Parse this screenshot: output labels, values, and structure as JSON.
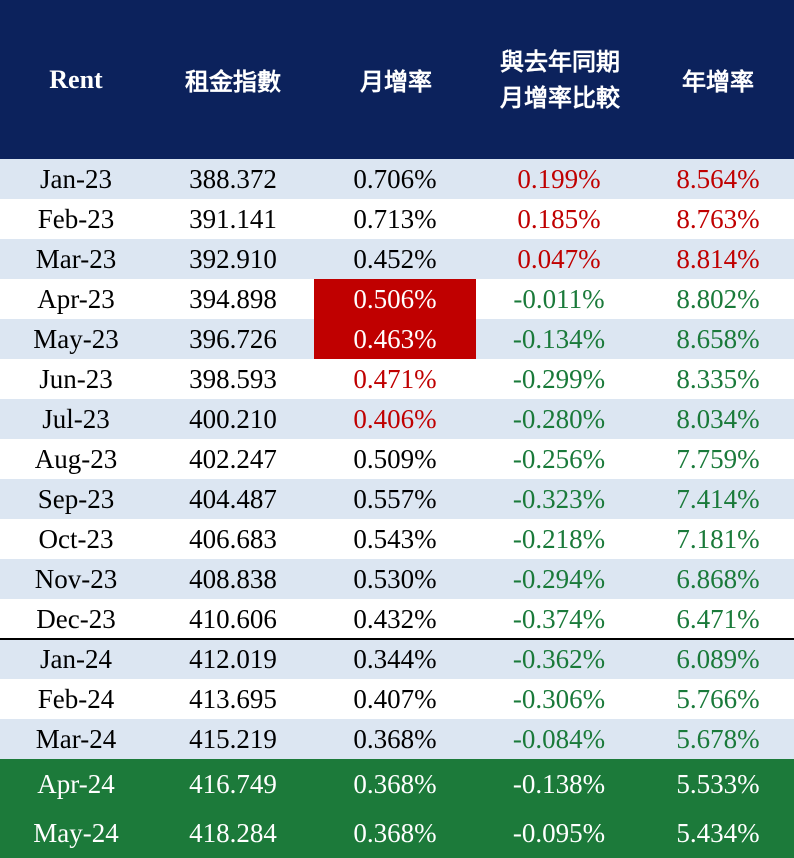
{
  "header": {
    "col0": "Rent",
    "col1": "租金指數",
    "col2": "月增率",
    "col3_line1": "與去年同期",
    "col3_line2": "月增率比較",
    "col4": "年增率"
  },
  "colors": {
    "header_bg": "#0c225c",
    "alt_row_bg": "#dce6f2",
    "highlight_green_bg": "#1c7a3a",
    "highlight_red_bg": "#c00000",
    "positive_red_text": "#c00000",
    "negative_green_text": "#1a7a3a"
  },
  "rows": [
    {
      "month": "Jan-23",
      "index": "388.372",
      "mom": "0.706%",
      "yoy_mom_diff": "0.199%",
      "yoy": "8.564%"
    },
    {
      "month": "Feb-23",
      "index": "391.141",
      "mom": "0.713%",
      "yoy_mom_diff": "0.185%",
      "yoy": "8.763%"
    },
    {
      "month": "Mar-23",
      "index": "392.910",
      "mom": "0.452%",
      "yoy_mom_diff": "0.047%",
      "yoy": "8.814%"
    },
    {
      "month": "Apr-23",
      "index": "394.898",
      "mom": "0.506%",
      "yoy_mom_diff": "-0.011%",
      "yoy": "8.802%"
    },
    {
      "month": "May-23",
      "index": "396.726",
      "mom": "0.463%",
      "yoy_mom_diff": "-0.134%",
      "yoy": "8.658%"
    },
    {
      "month": "Jun-23",
      "index": "398.593",
      "mom": "0.471%",
      "yoy_mom_diff": "-0.299%",
      "yoy": "8.335%"
    },
    {
      "month": "Jul-23",
      "index": "400.210",
      "mom": "0.406%",
      "yoy_mom_diff": "-0.280%",
      "yoy": "8.034%"
    },
    {
      "month": "Aug-23",
      "index": "402.247",
      "mom": "0.509%",
      "yoy_mom_diff": "-0.256%",
      "yoy": "7.759%"
    },
    {
      "month": "Sep-23",
      "index": "404.487",
      "mom": "0.557%",
      "yoy_mom_diff": "-0.323%",
      "yoy": "7.414%"
    },
    {
      "month": "Oct-23",
      "index": "406.683",
      "mom": "0.543%",
      "yoy_mom_diff": "-0.218%",
      "yoy": "7.181%"
    },
    {
      "month": "Nov-23",
      "index": "408.838",
      "mom": "0.530%",
      "yoy_mom_diff": "-0.294%",
      "yoy": "6.868%"
    },
    {
      "month": "Dec-23",
      "index": "410.606",
      "mom": "0.432%",
      "yoy_mom_diff": "-0.374%",
      "yoy": "6.471%"
    },
    {
      "month": "Jan-24",
      "index": "412.019",
      "mom": "0.344%",
      "yoy_mom_diff": "-0.362%",
      "yoy": "6.089%"
    },
    {
      "month": "Feb-24",
      "index": "413.695",
      "mom": "0.407%",
      "yoy_mom_diff": "-0.306%",
      "yoy": "5.766%"
    },
    {
      "month": "Mar-24",
      "index": "415.219",
      "mom": "0.368%",
      "yoy_mom_diff": "-0.084%",
      "yoy": "5.678%"
    },
    {
      "month": "Apr-24",
      "index": "416.749",
      "mom": "0.368%",
      "yoy_mom_diff": "-0.138%",
      "yoy": "5.533%"
    },
    {
      "month": "May-24",
      "index": "418.284",
      "mom": "0.368%",
      "yoy_mom_diff": "-0.095%",
      "yoy": "5.434%"
    }
  ]
}
